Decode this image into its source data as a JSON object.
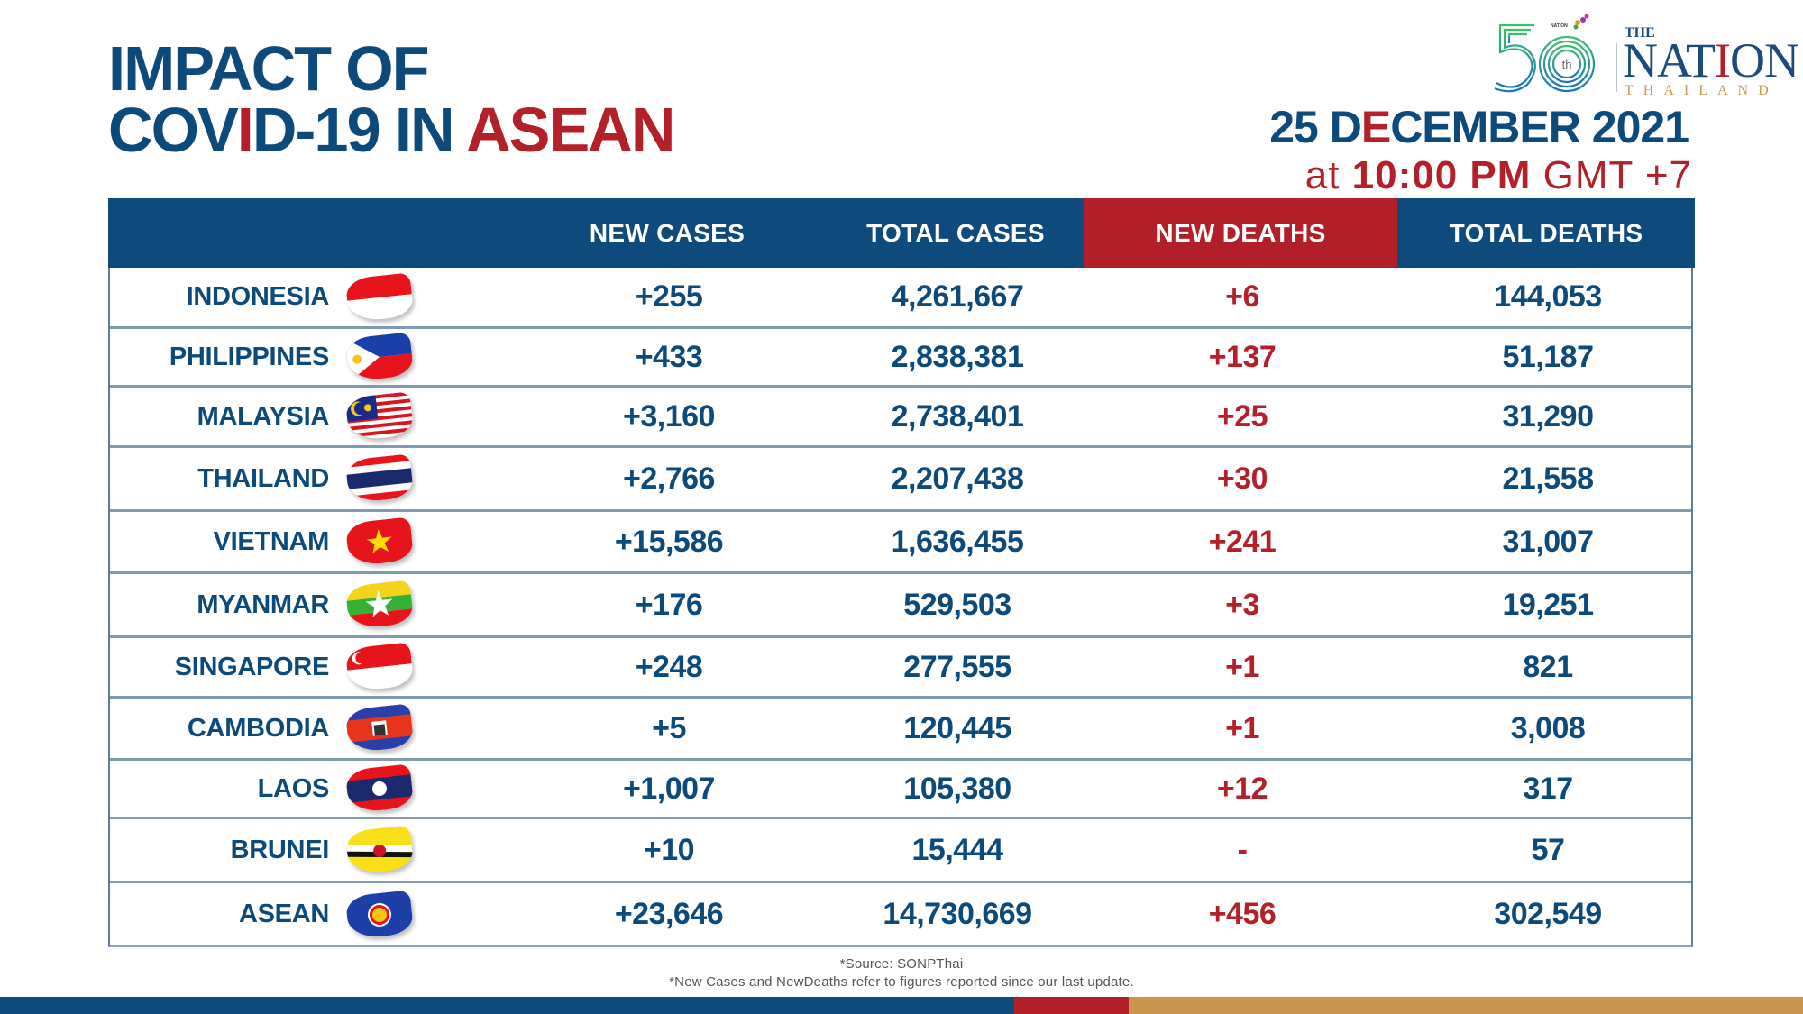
{
  "title": {
    "line1": "IMPACT OF",
    "line2_part1": "COV",
    "line2_red_letter": "I",
    "line2_part2": "D-19 IN ",
    "line2_red": "ASEAN"
  },
  "logo": {
    "anniversary": "50",
    "anniversary_suffix": "th",
    "group_label": "NATION GROUP",
    "the": "THE",
    "nation_part1": "NAT",
    "nation_red": "I",
    "nation_part2": "ON",
    "thailand": "THAILAND"
  },
  "date": {
    "part1": "25 D",
    "red_letter": "E",
    "part2": "CEMBER 2021",
    "time_prefix": "at ",
    "time_bold": "10:00 PM",
    "time_suffix": " GMT +7"
  },
  "colors": {
    "navy": "#0e4a7c",
    "red": "#b21f28",
    "tan": "#c9954f"
  },
  "table": {
    "headers": [
      "",
      "NEW CASES",
      "TOTAL CASES",
      "NEW DEATHS",
      "TOTAL DEATHS"
    ],
    "rows": [
      {
        "country": "INDONESIA",
        "flag": "indonesia-flag",
        "new_cases": "+255",
        "total_cases": "4,261,667",
        "new_deaths": "+6",
        "total_deaths": "144,053"
      },
      {
        "country": "PHILIPPINES",
        "flag": "philippines-flag",
        "new_cases": "+433",
        "total_cases": "2,838,381",
        "new_deaths": "+137",
        "total_deaths": "51,187"
      },
      {
        "country": "MALAYSIA",
        "flag": "malaysia-flag",
        "new_cases": "+3,160",
        "total_cases": "2,738,401",
        "new_deaths": "+25",
        "total_deaths": "31,290"
      },
      {
        "country": "THAILAND",
        "flag": "thailand-flag",
        "new_cases": "+2,766",
        "total_cases": "2,207,438",
        "new_deaths": "+30",
        "total_deaths": "21,558"
      },
      {
        "country": "VIETNAM",
        "flag": "vietnam-flag",
        "new_cases": "+15,586",
        "total_cases": "1,636,455",
        "new_deaths": "+241",
        "total_deaths": "31,007"
      },
      {
        "country": "MYANMAR",
        "flag": "myanmar-flag",
        "new_cases": "+176",
        "total_cases": "529,503",
        "new_deaths": "+3",
        "total_deaths": "19,251"
      },
      {
        "country": "SINGAPORE",
        "flag": "singapore-flag",
        "new_cases": "+248",
        "total_cases": "277,555",
        "new_deaths": "+1",
        "total_deaths": "821"
      },
      {
        "country": "CAMBODIA",
        "flag": "cambodia-flag",
        "new_cases": "+5",
        "total_cases": "120,445",
        "new_deaths": "+1",
        "total_deaths": "3,008"
      },
      {
        "country": "LAOS",
        "flag": "laos-flag",
        "new_cases": "+1,007",
        "total_cases": "105,380",
        "new_deaths": "+12",
        "total_deaths": "317"
      },
      {
        "country": "BRUNEI",
        "flag": "brunei-flag",
        "new_cases": "+10",
        "total_cases": "15,444",
        "new_deaths": "-",
        "total_deaths": "57"
      },
      {
        "country": "ASEAN",
        "flag": "asean-flag",
        "new_cases": "+23,646",
        "total_cases": "14,730,669",
        "new_deaths": "+456",
        "total_deaths": "302,549"
      }
    ]
  },
  "footer": {
    "source": "*Source: SONPThai",
    "note": "*New Cases and NewDeaths refer to figures reported since our last update."
  }
}
